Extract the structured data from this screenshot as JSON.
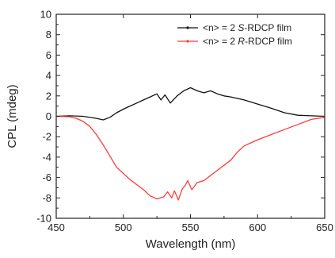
{
  "chart_data": {
    "type": "line",
    "xlabel": "Wavelength (nm)",
    "ylabel": "CPL (mdeg)",
    "xlim": [
      450,
      650
    ],
    "ylim": [
      -10,
      10
    ],
    "xticks": [
      450,
      500,
      550,
      600,
      650
    ],
    "yticks": [
      -10,
      -8,
      -6,
      -4,
      -2,
      0,
      2,
      4,
      6,
      8,
      10
    ],
    "grid": false,
    "legend_position": "top-right",
    "series": [
      {
        "name_parts": [
          "<n> = 2 ",
          "S",
          "-RDCP film"
        ],
        "color": "#111111",
        "x": [
          450,
          460,
          470,
          480,
          485,
          490,
          495,
          500,
          505,
          510,
          515,
          520,
          525,
          528,
          531,
          535,
          540,
          545,
          550,
          555,
          560,
          565,
          570,
          575,
          580,
          590,
          600,
          610,
          620,
          630,
          640,
          650
        ],
        "y": [
          0.0,
          0.05,
          0.0,
          -0.2,
          -0.35,
          -0.1,
          0.35,
          0.7,
          1.0,
          1.3,
          1.6,
          1.9,
          2.2,
          1.6,
          2.1,
          1.3,
          2.0,
          2.5,
          2.8,
          2.5,
          2.3,
          2.5,
          2.2,
          2.0,
          1.9,
          1.6,
          1.2,
          0.8,
          0.35,
          0.1,
          0.05,
          0.0
        ]
      },
      {
        "name_parts": [
          "<n> = 2 ",
          "R",
          "-RDCP film"
        ],
        "color": "#ff3b3b",
        "x": [
          450,
          460,
          465,
          470,
          475,
          480,
          485,
          490,
          495,
          500,
          505,
          510,
          515,
          520,
          525,
          530,
          533,
          536,
          538,
          541,
          544,
          546,
          548,
          551,
          555,
          560,
          565,
          570,
          575,
          580,
          585,
          590,
          595,
          600,
          610,
          620,
          630,
          640,
          650
        ],
        "y": [
          0.0,
          -0.05,
          -0.2,
          -0.5,
          -1.0,
          -1.8,
          -2.8,
          -3.9,
          -5.0,
          -5.6,
          -6.2,
          -6.7,
          -7.2,
          -7.8,
          -8.1,
          -7.9,
          -7.4,
          -8.0,
          -7.3,
          -8.2,
          -7.1,
          -6.8,
          -6.3,
          -7.2,
          -6.5,
          -6.3,
          -5.8,
          -5.3,
          -4.8,
          -4.3,
          -3.5,
          -2.9,
          -2.6,
          -2.3,
          -1.8,
          -1.3,
          -0.8,
          -0.3,
          -0.1
        ]
      }
    ]
  }
}
